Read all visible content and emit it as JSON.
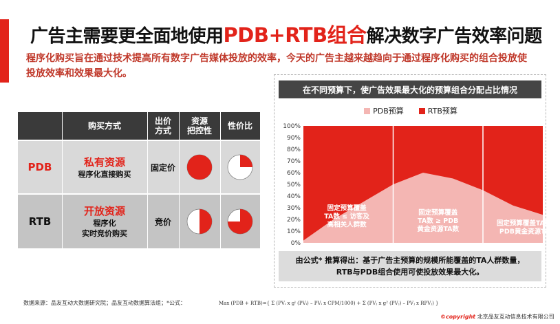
{
  "header": {
    "title_pre": "广告主需要更全面地使用",
    "title_highlight": "PDB+RTB组合",
    "title_post": "解决数字广告效率问题",
    "subtitle": "程序化购买旨在通过技术提高所有数字广告媒体投放的效率，今天的广告主越来越趋向于通过程序化购买的组合投放使投放效率和效果最大化。"
  },
  "table": {
    "headers": [
      "购买方式",
      "出价\n方式",
      "资源\n把控性",
      "性价比"
    ],
    "rows": [
      {
        "category": "PDB",
        "resource_main": "私有资源",
        "resource_sub": "程序化直接购买",
        "pricing": "固定价",
        "control_fill": 1.0,
        "value_fill": 0.25
      },
      {
        "category": "RTB",
        "resource_main": "开放资源",
        "resource_sub": "程序化\n实时竞价购买",
        "pricing": "竞价",
        "control_fill": 0.5,
        "value_fill": 0.75
      }
    ]
  },
  "chart_data": {
    "type": "area",
    "title": "在不同预算下，使广告效果最大化的预算组合分配占比情况",
    "legend": [
      "PDB预算",
      "RTB预算"
    ],
    "y_ticks": [
      "0%",
      "10%",
      "20%",
      "30%",
      "40%",
      "50%",
      "60%",
      "70%",
      "80%",
      "90%",
      "100%"
    ],
    "ylim": [
      0,
      100
    ],
    "x": [
      0,
      1,
      2,
      3,
      4,
      5,
      6,
      7,
      8
    ],
    "series": [
      {
        "name": "PDB预算",
        "values": [
          2,
          20,
          35,
          50,
          60,
          55,
          45,
          32,
          24
        ]
      },
      {
        "name": "RTB预算",
        "values": [
          98,
          80,
          65,
          50,
          40,
          45,
          55,
          68,
          76
        ]
      }
    ],
    "annotations": [
      "固定预算覆盖\nTA数 ≤ 访客及\n高相关人群数",
      "固定预算覆盖\nTA数 ≥ PDB\n黄金资源TA数",
      "固定预算覆盖TA数 <\nPDB黄金资源TA数"
    ],
    "colors": {
      "pdb": "#f4b6b3",
      "rtb": "#e2231a"
    }
  },
  "note": {
    "line1": "由公式* 推算得出：基于广告主预算的规模所能覆盖的TA人群数量，",
    "line2": "RTB与PDB组合使用可使投放效果最大化。"
  },
  "footer": {
    "source": "数据来源：品友互动大数据研究院；品友互动数据算法组；*公式：",
    "formula": "Max (PDB + RTB)={ Σ (PVᵢ x gˡ (PVᵢ) – PVᵢ x CPM/1000) + Σ (PVⱼ x g² (PVⱼ) – PVⱼ x RPVⱼ) }",
    "copyright_mark": "©copyright",
    "copyright_text": "北京品友互动信息技术有限公司"
  }
}
